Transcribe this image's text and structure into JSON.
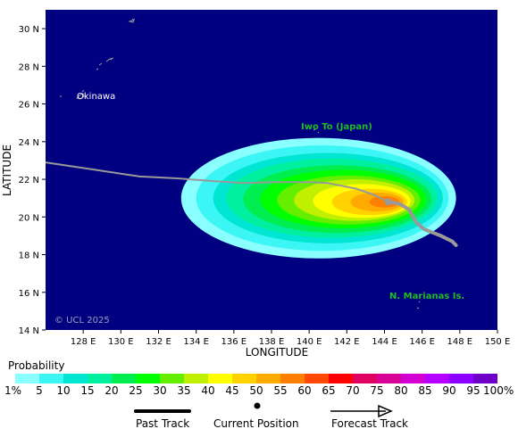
{
  "map": {
    "lat_min": 14,
    "lat_max": 31,
    "lon_min": 126,
    "lon_max": 150,
    "x_label": "LONGITUDE",
    "y_label": "LATITUDE",
    "lon_ticks": [
      "128 E",
      "130 E",
      "132 E",
      "134 E",
      "136 E",
      "138 E",
      "140 E",
      "142 E",
      "144 E",
      "146 E",
      "148 E",
      "150 E"
    ],
    "lat_ticks": [
      "30 N",
      "28 N",
      "26 N",
      "24 N",
      "22 N",
      "20 N",
      "18 N",
      "16 N",
      "14 N"
    ],
    "ocean_color": "#000080",
    "places": [
      {
        "name": "Okinawa",
        "lon": 127.7,
        "lat": 26.3
      },
      {
        "name": "Iwo To (Japan)",
        "lon": 141.3,
        "lat": 24.8
      },
      {
        "name": "N. Marianas Is.",
        "lon": 145.7,
        "lat": 15.8
      }
    ],
    "copyright": "© UCL 2025"
  },
  "track": {
    "past": [
      [
        126,
        22.9
      ],
      [
        128,
        22.6
      ],
      [
        130,
        22.3
      ],
      [
        131,
        22.15
      ],
      [
        133,
        22.05
      ],
      [
        135,
        21.9
      ],
      [
        136.5,
        21.8
      ],
      [
        138,
        21.85
      ],
      [
        140,
        21.85
      ],
      [
        141,
        21.8
      ],
      [
        142.5,
        21.5
      ],
      [
        143.5,
        21.15
      ],
      [
        144.2,
        20.8
      ]
    ],
    "forecast": [
      [
        144.2,
        20.8
      ],
      [
        144.8,
        20.7
      ],
      [
        145.3,
        20.4
      ],
      [
        145.7,
        19.7
      ],
      [
        146.1,
        19.35
      ],
      [
        147,
        19.0
      ],
      [
        147.6,
        18.7
      ],
      [
        147.8,
        18.5
      ]
    ],
    "current_position": [
      144.2,
      20.8
    ],
    "past_color": "#999999",
    "current_color": "#9a9a9a"
  },
  "probability": {
    "shells": [
      {
        "cx": 140.5,
        "cy": 21.0,
        "rx": 7.3,
        "ry": 3.2
      },
      {
        "cx": 140.7,
        "cy": 21.0,
        "rx": 6.7,
        "ry": 2.8
      },
      {
        "cx": 141.0,
        "cy": 21.0,
        "rx": 6.1,
        "ry": 2.4
      },
      {
        "cx": 141.2,
        "cy": 21.0,
        "rx": 5.6,
        "ry": 2.1
      },
      {
        "cx": 141.5,
        "cy": 20.95,
        "rx": 5.0,
        "ry": 1.8
      },
      {
        "cx": 141.8,
        "cy": 20.95,
        "rx": 4.4,
        "ry": 1.55
      },
      {
        "cx": 142.1,
        "cy": 20.9,
        "rx": 3.8,
        "ry": 1.3
      },
      {
        "cx": 142.4,
        "cy": 20.9,
        "rx": 3.2,
        "ry": 1.1
      },
      {
        "cx": 142.8,
        "cy": 20.85,
        "rx": 2.6,
        "ry": 0.9
      },
      {
        "cx": 143.2,
        "cy": 20.8,
        "rx": 2.0,
        "ry": 0.7
      },
      {
        "cx": 143.6,
        "cy": 20.8,
        "rx": 1.4,
        "ry": 0.5
      },
      {
        "cx": 144.0,
        "cy": 20.8,
        "rx": 0.8,
        "ry": 0.3
      }
    ]
  },
  "legend": {
    "title": "Probability",
    "labels": [
      "1%",
      "5",
      "10",
      "15",
      "20",
      "25",
      "30",
      "35",
      "40",
      "45",
      "50",
      "55",
      "60",
      "65",
      "70",
      "75",
      "80",
      "85",
      "90",
      "95",
      "100%"
    ],
    "colors": [
      "#8affff",
      "#3cf6f6",
      "#00e6d2",
      "#00f0a0",
      "#00ee50",
      "#00ff00",
      "#66ee00",
      "#c0f000",
      "#ffff00",
      "#ffd200",
      "#ffaa00",
      "#ff8000",
      "#ff4800",
      "#ff0000",
      "#e00064",
      "#d80096",
      "#d200d2",
      "#b400ff",
      "#8c00ff",
      "#6e00c8",
      "#640064"
    ],
    "past_track_label": "Past Track",
    "current_position_label": "Current Position",
    "forecast_track_label": "Forecast Track"
  }
}
